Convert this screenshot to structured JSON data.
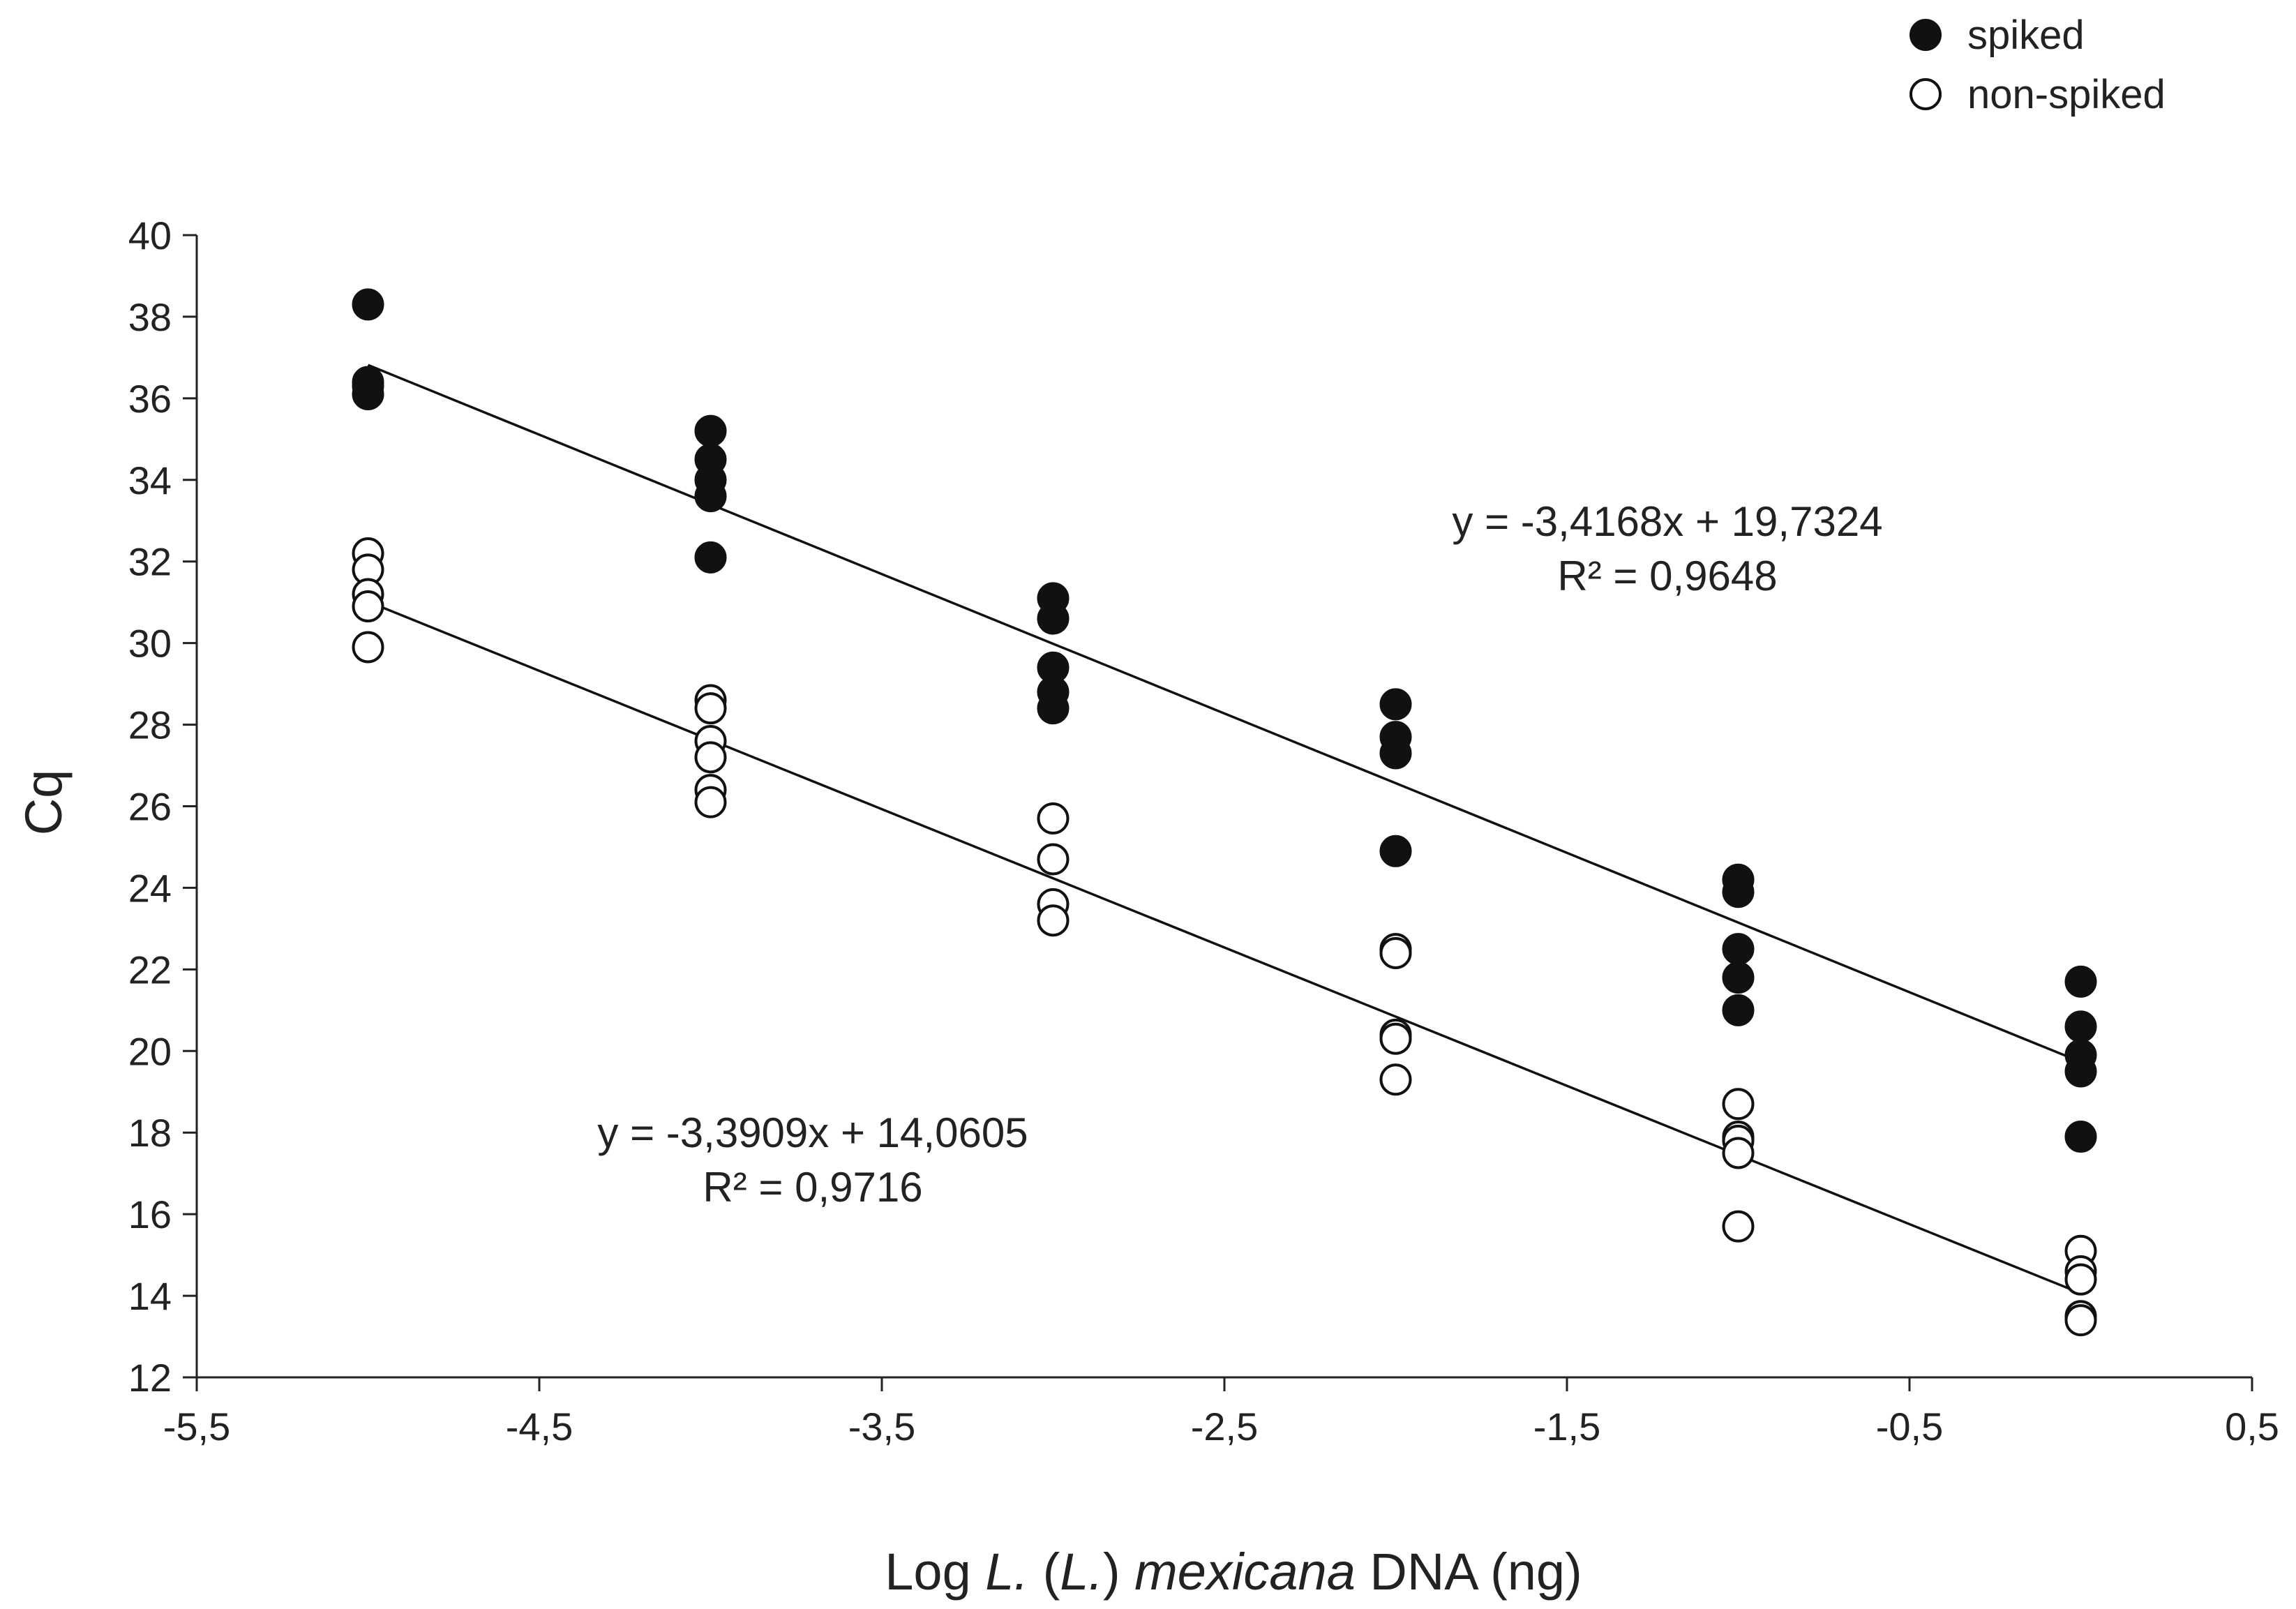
{
  "chart_data": {
    "type": "scatter",
    "title": "",
    "xlabel": {
      "prefix": "Log ",
      "italic1": "L.",
      "middle": " (",
      "italic2": "L.",
      "middle2": ")  ",
      "italic3": "mexicana",
      "suffix": " DNA (ng)"
    },
    "ylabel": "Cq",
    "xlim": [
      -5.5,
      0.5
    ],
    "ylim": [
      12,
      40
    ],
    "x_ticks": [
      -5.5,
      -4.5,
      -3.5,
      -2.5,
      -1.5,
      -0.5,
      0.5
    ],
    "x_tick_labels": [
      "-5,5",
      "-4,5",
      "-3,5",
      "-2,5",
      "-1,5",
      "-0,5",
      "0,5"
    ],
    "y_ticks": [
      12,
      14,
      16,
      18,
      20,
      22,
      24,
      26,
      28,
      30,
      32,
      34,
      36,
      38,
      40
    ],
    "y_tick_labels": [
      "12",
      "14",
      "16",
      "18",
      "20",
      "22",
      "24",
      "26",
      "28",
      "30",
      "32",
      "34",
      "36",
      "38",
      "40"
    ],
    "grid": false,
    "legend": {
      "position": "top-right"
    },
    "series": [
      {
        "name": "spiked",
        "marker": "filled-circle",
        "points": [
          [
            -5,
            38.3
          ],
          [
            -5,
            36.3
          ],
          [
            -5,
            36.1
          ],
          [
            -5,
            36.4
          ],
          [
            -4,
            35.2
          ],
          [
            -4,
            34.5
          ],
          [
            -4,
            34.0
          ],
          [
            -4,
            33.6
          ],
          [
            -4,
            32.1
          ],
          [
            -3,
            31.1
          ],
          [
            -3,
            30.6
          ],
          [
            -3,
            29.4
          ],
          [
            -3,
            28.8
          ],
          [
            -3,
            28.4
          ],
          [
            -2,
            28.5
          ],
          [
            -2,
            27.7
          ],
          [
            -2,
            27.3
          ],
          [
            -2,
            24.9
          ],
          [
            -1,
            24.2
          ],
          [
            -1,
            23.9
          ],
          [
            -1,
            22.5
          ],
          [
            -1,
            21.8
          ],
          [
            -1,
            21.0
          ],
          [
            0,
            21.7
          ],
          [
            0,
            20.6
          ],
          [
            0,
            19.9
          ],
          [
            0,
            19.5
          ],
          [
            0,
            17.9
          ]
        ],
        "trendline": {
          "equation": "y = -3,4168x + 19,7324",
          "r2": "R² = 0,9648",
          "slope": -3.4168,
          "intercept": 19.7324,
          "x_range": [
            -5,
            0
          ]
        }
      },
      {
        "name": "non-spiked",
        "marker": "open-circle",
        "points": [
          [
            -5,
            32.2
          ],
          [
            -5,
            31.8
          ],
          [
            -5,
            31.2
          ],
          [
            -5,
            30.9
          ],
          [
            -5,
            29.9
          ],
          [
            -4,
            28.6
          ],
          [
            -4,
            28.4
          ],
          [
            -4,
            27.6
          ],
          [
            -4,
            27.2
          ],
          [
            -4,
            26.4
          ],
          [
            -4,
            26.1
          ],
          [
            -3,
            25.7
          ],
          [
            -3,
            24.7
          ],
          [
            -3,
            23.6
          ],
          [
            -3,
            23.2
          ],
          [
            -2,
            22.5
          ],
          [
            -2,
            22.4
          ],
          [
            -2,
            20.4
          ],
          [
            -2,
            20.3
          ],
          [
            -2,
            19.3
          ],
          [
            -1,
            18.7
          ],
          [
            -1,
            17.9
          ],
          [
            -1,
            17.8
          ],
          [
            -1,
            17.5
          ],
          [
            -1,
            15.7
          ],
          [
            0,
            15.1
          ],
          [
            0,
            14.6
          ],
          [
            0,
            14.4
          ],
          [
            0,
            13.5
          ],
          [
            0,
            13.4
          ]
        ],
        "trendline": {
          "equation": "y = -3,3909x + 14,0605",
          "r2": "R² = 0,9716",
          "slope": -3.3909,
          "intercept": 14.0605,
          "x_range": [
            -5,
            0
          ]
        }
      }
    ]
  }
}
